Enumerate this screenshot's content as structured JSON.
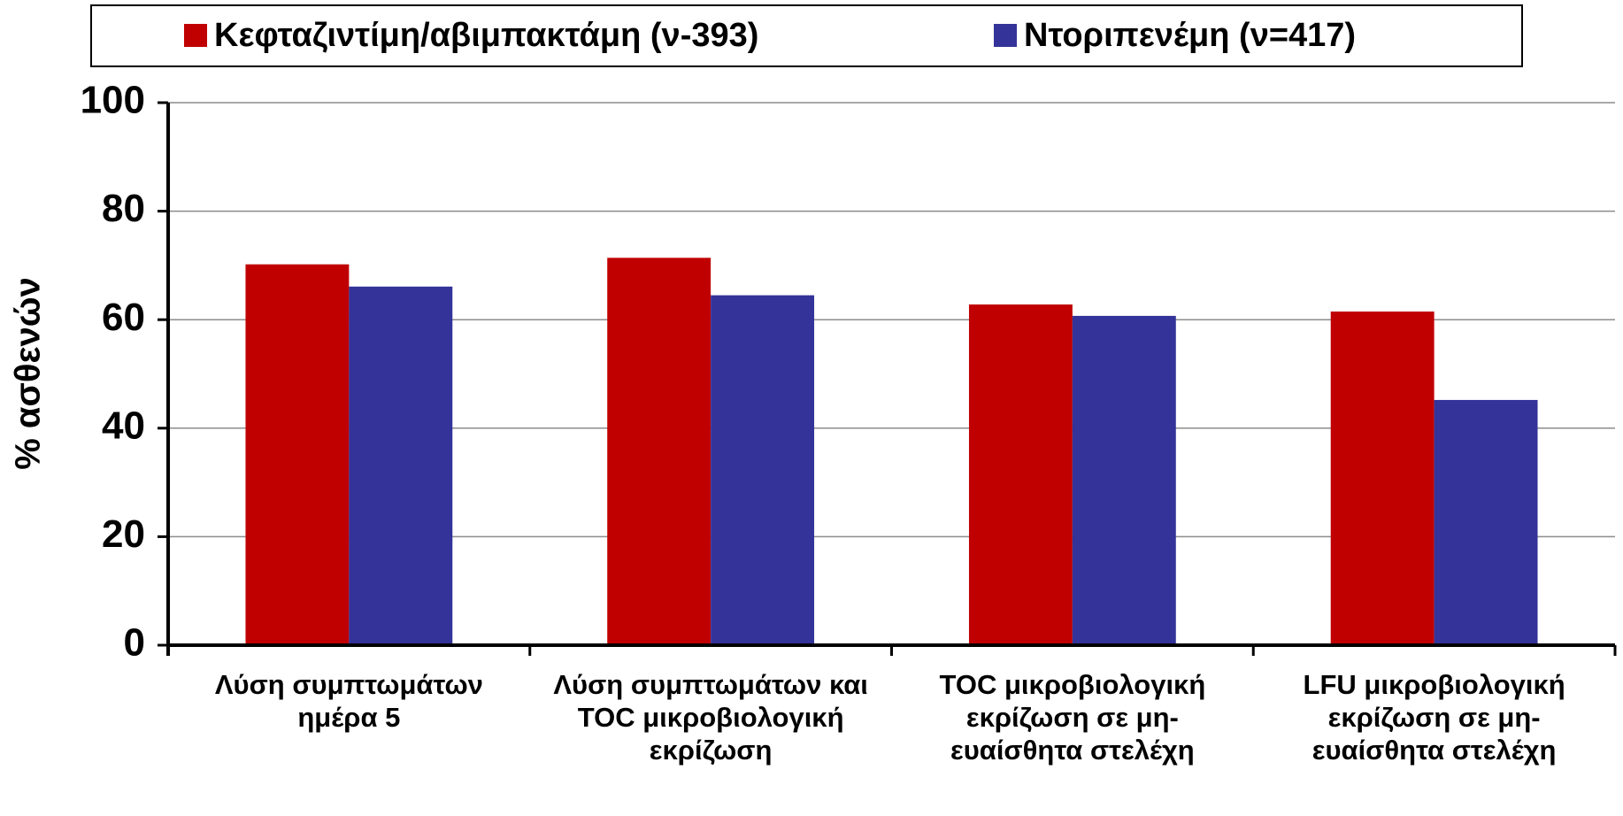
{
  "chart_data": {
    "type": "bar",
    "y_label": "% ασθενών",
    "categories": [
      "Λύση συμπτωμάτων ημέρα 5",
      "Λύση συμπτωμάτων και TOC μικροβιολογική εκρίζωση",
      "TOC μικροβιολογική εκρίζωση σε μη-ευαίσθητα στελέχη",
      "LFU μικροβιολογική εκρίζωση σε μη-ευαίσθητα στελέχη"
    ],
    "series": [
      {
        "name": "Κεφταζιντίμη/αβιμπακτάμη (ν-393)",
        "color": "#c00000",
        "values": [
          70.2,
          71.4,
          62.8,
          61.5
        ]
      },
      {
        "name": "Ντοριπενέμη (ν=417)",
        "color": "#333399",
        "values": [
          66.1,
          64.5,
          60.7,
          45.2
        ]
      }
    ],
    "ylim": [
      0,
      100
    ],
    "yticks": [
      0,
      20,
      40,
      60,
      80,
      100
    ],
    "grid": true,
    "legend": "top"
  }
}
